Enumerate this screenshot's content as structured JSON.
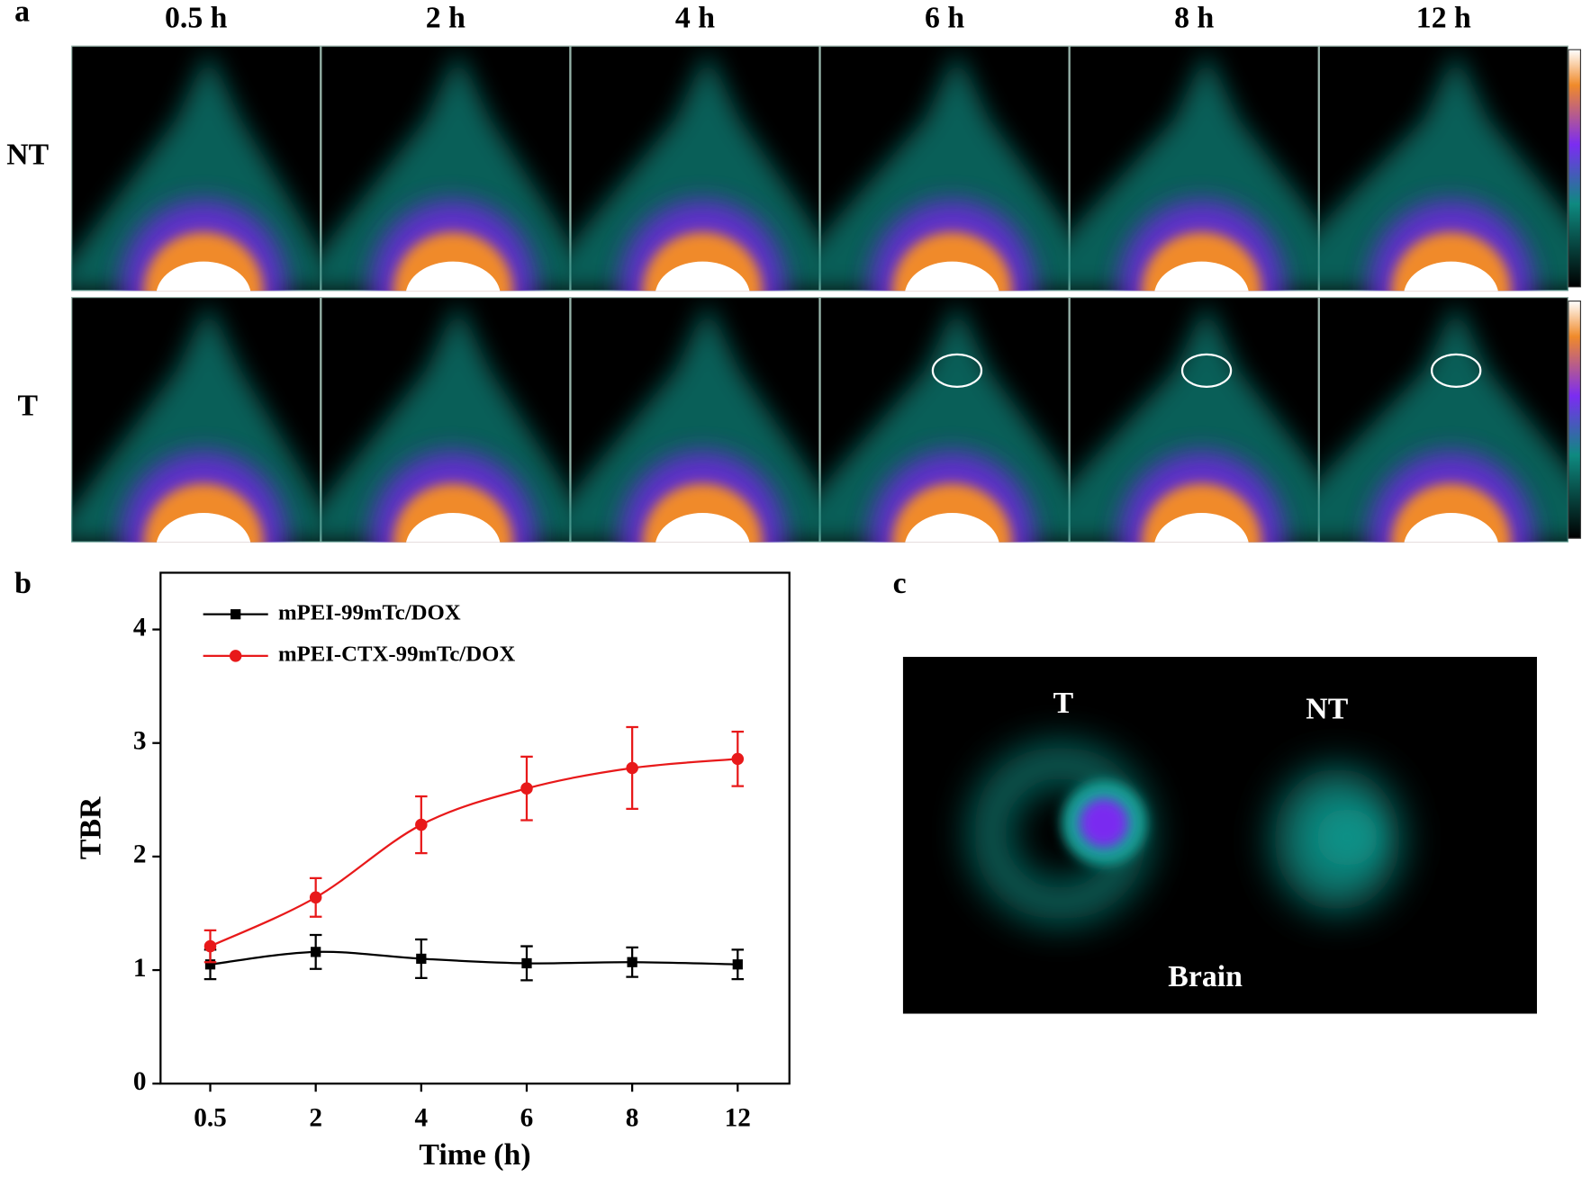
{
  "panel_labels": [
    "a",
    "b",
    "c"
  ],
  "panel_a": {
    "columns": [
      "0.5 h",
      "2 h",
      "4 h",
      "6 h",
      "8 h",
      "12 h"
    ],
    "rows": [
      "NT",
      "T"
    ]
  },
  "chart_data": {
    "type": "line",
    "xlabel": "Time (h)",
    "ylabel": "TBR",
    "categories": [
      "0.5",
      "2",
      "4",
      "6",
      "8",
      "12"
    ],
    "ylim": [
      0,
      4.5
    ],
    "yticks": [
      0,
      1,
      2,
      3,
      4
    ],
    "legend": "upper left",
    "series": [
      {
        "name": "mPEI-99mTc/DOX",
        "color": "#000000",
        "marker": "square",
        "values": [
          1.05,
          1.16,
          1.1,
          1.06,
          1.07,
          1.05
        ],
        "errors": [
          0.13,
          0.15,
          0.17,
          0.15,
          0.13,
          0.13
        ]
      },
      {
        "name": "mPEI-CTX-99mTc/DOX",
        "color": "#e8191a",
        "marker": "circle",
        "values": [
          1.21,
          1.64,
          2.28,
          2.6,
          2.78,
          2.86
        ],
        "errors": [
          0.14,
          0.17,
          0.25,
          0.28,
          0.36,
          0.24
        ]
      }
    ]
  },
  "panel_c": {
    "labels": [
      "T",
      "NT",
      "Brain"
    ]
  }
}
